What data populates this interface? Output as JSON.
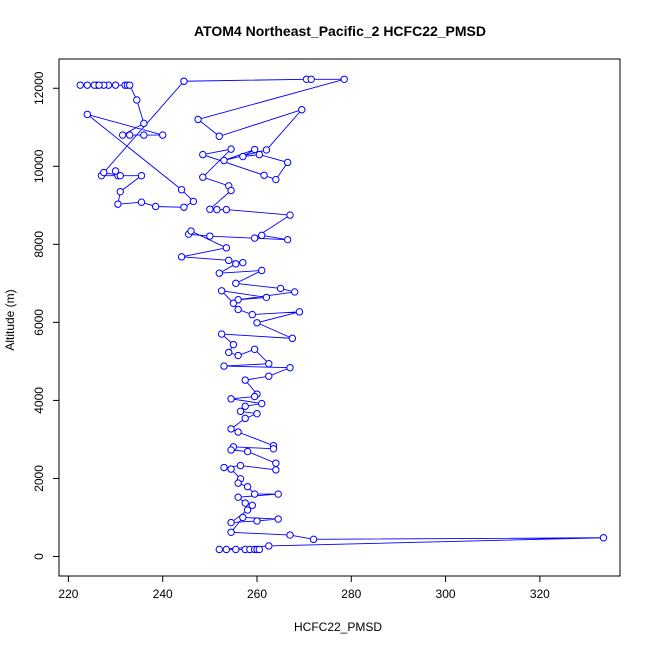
{
  "chart_data": {
    "type": "line",
    "title": "ATOM4 Northeast_Pacific_2 HCFC22_PMSD",
    "xlabel": "HCFC22_PMSD",
    "ylabel": "Altitude (m)",
    "xlim": [
      218.0,
      337.0
    ],
    "ylim": [
      -500,
      12750
    ],
    "x_ticks": [
      220,
      240,
      260,
      280,
      300,
      320
    ],
    "y_ticks": [
      0,
      2000,
      4000,
      6000,
      8000,
      10000,
      12000
    ],
    "grid": false,
    "marker": "open-circle",
    "series_color": "#0000ff",
    "points": [
      [
        228.5,
        12080
      ],
      [
        226.0,
        12080
      ],
      [
        227.5,
        12080
      ],
      [
        232.0,
        12080
      ],
      [
        230.0,
        12080
      ],
      [
        224.0,
        12080
      ],
      [
        225.5,
        12080
      ],
      [
        222.5,
        12080
      ],
      [
        232.5,
        12080
      ],
      [
        226.5,
        12080
      ],
      [
        233.0,
        12080
      ],
      [
        234.5,
        11700
      ],
      [
        236.0,
        11100
      ],
      [
        231.5,
        10800
      ],
      [
        233.0,
        10800
      ],
      [
        236.0,
        10800
      ],
      [
        240.0,
        10800
      ],
      [
        224.0,
        11330
      ],
      [
        244.0,
        9400
      ],
      [
        246.5,
        9100
      ],
      [
        244.5,
        8950
      ],
      [
        238.5,
        8970
      ],
      [
        235.5,
        9080
      ],
      [
        230.5,
        9030
      ],
      [
        231.0,
        9350
      ],
      [
        235.5,
        9760
      ],
      [
        227.0,
        9760
      ],
      [
        230.5,
        9760
      ],
      [
        230.0,
        9880
      ],
      [
        231.0,
        9760
      ],
      [
        227.5,
        9840
      ],
      [
        244.5,
        12180
      ],
      [
        270.5,
        12230
      ],
      [
        271.5,
        12230
      ],
      [
        278.5,
        12230
      ],
      [
        247.5,
        11200
      ],
      [
        252.0,
        10770
      ],
      [
        269.5,
        11450
      ],
      [
        262.0,
        10420
      ],
      [
        253.0,
        10150
      ],
      [
        259.5,
        10430
      ],
      [
        257.0,
        10250
      ],
      [
        260.5,
        10300
      ],
      [
        266.5,
        10100
      ],
      [
        264.0,
        9660
      ],
      [
        261.5,
        9770
      ],
      [
        248.5,
        10300
      ],
      [
        254.5,
        10440
      ],
      [
        248.5,
        9720
      ],
      [
        254.0,
        9500
      ],
      [
        254.5,
        9380
      ],
      [
        250.0,
        8900
      ],
      [
        251.5,
        8890
      ],
      [
        253.5,
        8890
      ],
      [
        267.0,
        8750
      ],
      [
        259.5,
        8160
      ],
      [
        261.0,
        8230
      ],
      [
        266.5,
        8120
      ],
      [
        250.0,
        8210
      ],
      [
        245.5,
        8260
      ],
      [
        246.0,
        8340
      ],
      [
        253.5,
        7910
      ],
      [
        244.0,
        7680
      ],
      [
        254.0,
        7590
      ],
      [
        257.0,
        7530
      ],
      [
        255.5,
        7500
      ],
      [
        252.0,
        7260
      ],
      [
        261.0,
        7330
      ],
      [
        255.5,
        7000
      ],
      [
        265.0,
        6870
      ],
      [
        268.0,
        6780
      ],
      [
        256.0,
        6580
      ],
      [
        262.0,
        6640
      ],
      [
        252.5,
        6810
      ],
      [
        255.0,
        6490
      ],
      [
        256.0,
        6330
      ],
      [
        259.0,
        6200
      ],
      [
        269.0,
        6270
      ],
      [
        260.0,
        5990
      ],
      [
        267.5,
        5590
      ],
      [
        252.5,
        5700
      ],
      [
        255.0,
        5430
      ],
      [
        254.0,
        5230
      ],
      [
        256.0,
        5150
      ],
      [
        259.5,
        5310
      ],
      [
        262.5,
        4940
      ],
      [
        253.0,
        4880
      ],
      [
        267.0,
        4840
      ],
      [
        262.5,
        4620
      ],
      [
        257.5,
        4520
      ],
      [
        260.0,
        4160
      ],
      [
        259.5,
        4100
      ],
      [
        254.5,
        4040
      ],
      [
        261.0,
        3920
      ],
      [
        257.5,
        3850
      ],
      [
        256.5,
        3720
      ],
      [
        260.0,
        3660
      ],
      [
        257.5,
        3540
      ],
      [
        254.5,
        3270
      ],
      [
        256.0,
        3190
      ],
      [
        263.5,
        2840
      ],
      [
        263.5,
        2760
      ],
      [
        255.0,
        2810
      ],
      [
        254.5,
        2730
      ],
      [
        258.0,
        2690
      ],
      [
        264.0,
        2390
      ],
      [
        264.0,
        2220
      ],
      [
        256.5,
        2330
      ],
      [
        253.0,
        2280
      ],
      [
        254.5,
        2240
      ],
      [
        256.5,
        1990
      ],
      [
        256.0,
        1880
      ],
      [
        258.0,
        1790
      ],
      [
        259.5,
        1600
      ],
      [
        264.5,
        1600
      ],
      [
        256.0,
        1520
      ],
      [
        257.5,
        1370
      ],
      [
        259.0,
        1310
      ],
      [
        258.0,
        1190
      ],
      [
        254.5,
        870
      ],
      [
        260.0,
        910
      ],
      [
        264.5,
        960
      ],
      [
        257.0,
        1000
      ],
      [
        254.5,
        620
      ],
      [
        267.0,
        550
      ],
      [
        272.0,
        440
      ],
      [
        333.5,
        480
      ],
      [
        262.5,
        270
      ],
      [
        252.0,
        180
      ],
      [
        253.5,
        180
      ],
      [
        255.5,
        180
      ],
      [
        257.5,
        180
      ],
      [
        258.5,
        180
      ],
      [
        259.5,
        180
      ],
      [
        260.0,
        180
      ],
      [
        260.5,
        180
      ]
    ]
  }
}
